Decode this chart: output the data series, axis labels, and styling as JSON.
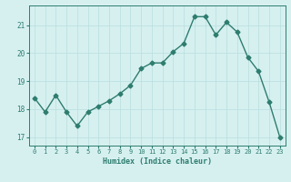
{
  "x": [
    0,
    1,
    2,
    3,
    4,
    5,
    6,
    7,
    8,
    9,
    10,
    11,
    12,
    13,
    14,
    15,
    16,
    17,
    18,
    19,
    20,
    21,
    22,
    23
  ],
  "y": [
    18.4,
    17.9,
    18.5,
    17.9,
    17.4,
    17.9,
    18.1,
    18.3,
    18.55,
    18.85,
    19.45,
    19.65,
    19.65,
    20.05,
    20.35,
    21.3,
    21.3,
    20.65,
    21.1,
    20.75,
    19.85,
    19.35,
    18.25,
    17.0
  ],
  "xlabel": "Humidex (Indice chaleur)",
  "yticks": [
    17,
    18,
    19,
    20,
    21
  ],
  "xticks": [
    0,
    1,
    2,
    3,
    4,
    5,
    6,
    7,
    8,
    9,
    10,
    11,
    12,
    13,
    14,
    15,
    16,
    17,
    18,
    19,
    20,
    21,
    22,
    23
  ],
  "ylim": [
    16.7,
    21.7
  ],
  "xlim": [
    -0.5,
    23.5
  ],
  "line_color": "#2e7d6e",
  "bg_color": "#d6f0f0",
  "grid_color": "#b8dede",
  "axis_color": "#2e7d6e",
  "tick_color": "#2e7d6e",
  "label_color": "#2e7d6e",
  "marker": "D",
  "marker_size": 2.5,
  "line_width": 1.0
}
